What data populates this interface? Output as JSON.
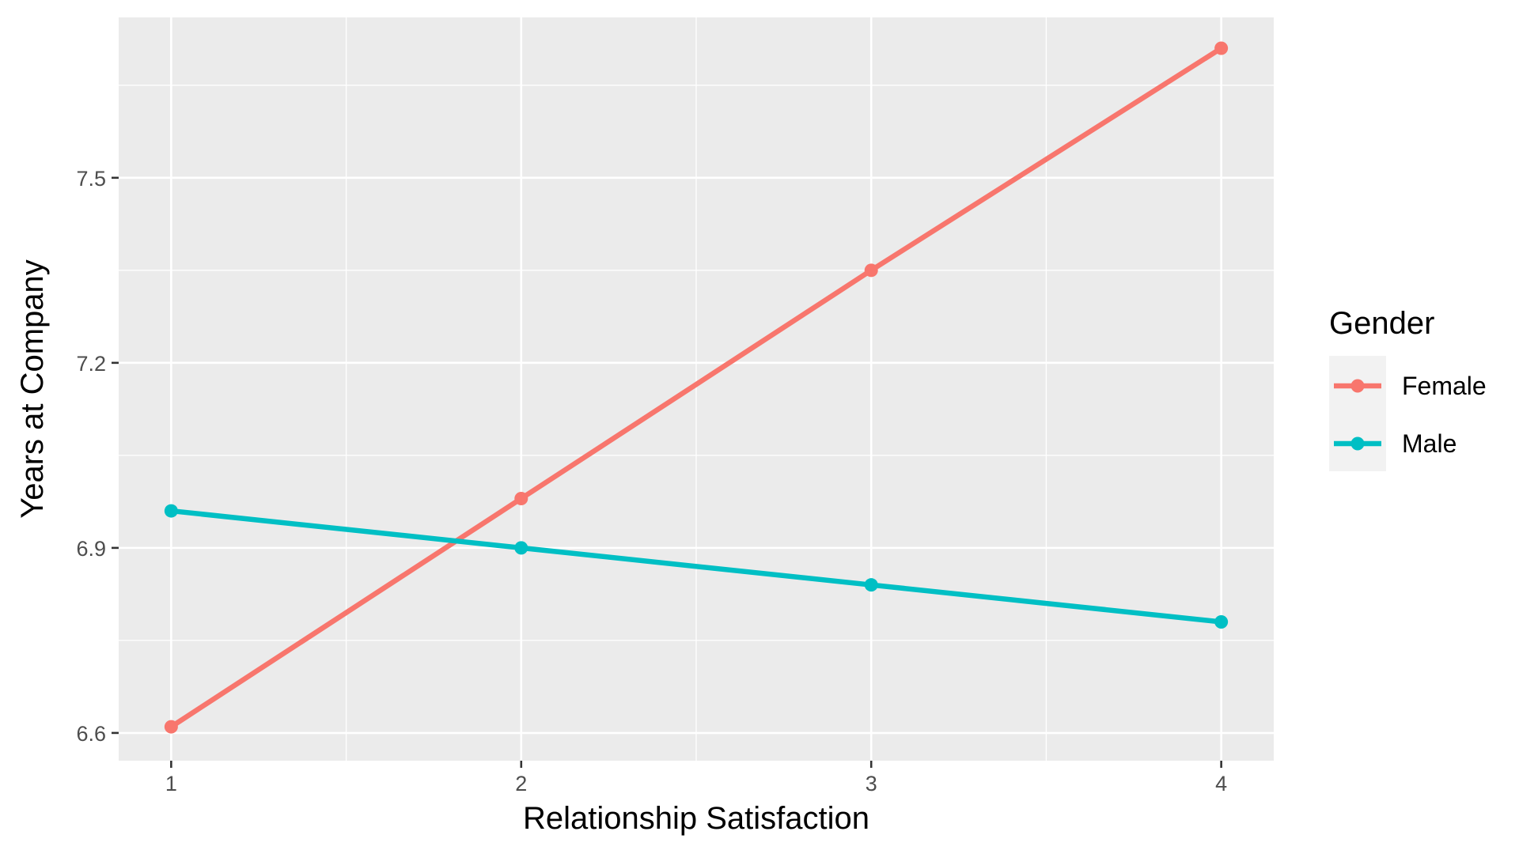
{
  "chart_data": {
    "type": "line",
    "title": "",
    "xlabel": "Relationship Satisfaction",
    "ylabel": "Years at Company",
    "x": [
      1,
      2,
      3,
      4
    ],
    "x_ticks": [
      "1",
      "2",
      "3",
      "4"
    ],
    "y_ticks": [
      "6.6",
      "6.9",
      "7.2",
      "7.5"
    ],
    "xlim": [
      0.85,
      4.15
    ],
    "ylim": [
      6.555,
      7.76
    ],
    "grid": true,
    "legend": {
      "title": "Gender",
      "position": "right"
    },
    "series": [
      {
        "name": "Female",
        "color": "#F8766D",
        "values": [
          6.61,
          6.98,
          7.35,
          7.71
        ]
      },
      {
        "name": "Male",
        "color": "#00BFC4",
        "values": [
          6.96,
          6.9,
          6.84,
          6.78
        ]
      }
    ]
  }
}
